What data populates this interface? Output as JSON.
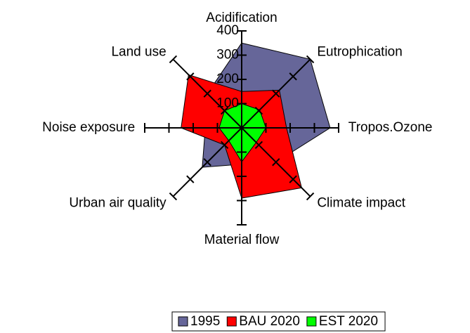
{
  "chart_data": {
    "type": "radar",
    "categories": [
      "Acidification",
      "Eutrophication",
      "Tropos.Ozone",
      "Climate impact",
      "Material flow",
      "Urban air quality",
      "Noise exposure",
      "Land use"
    ],
    "series": [
      {
        "name": "1995",
        "color": "#666699",
        "values": [
          350,
          400,
          365,
          200,
          150,
          230,
          150,
          200
        ]
      },
      {
        "name": "BAU 2020",
        "color": "#ff0000",
        "values": [
          150,
          220,
          185,
          350,
          290,
          100,
          250,
          310
        ]
      },
      {
        "name": "EST 2020",
        "color": "#00ff00",
        "values": [
          100,
          105,
          100,
          85,
          140,
          75,
          93,
          100
        ]
      }
    ],
    "ylim": [
      0,
      400
    ],
    "yticks": [
      0,
      100,
      200,
      300,
      400
    ],
    "legend": "bottom"
  }
}
